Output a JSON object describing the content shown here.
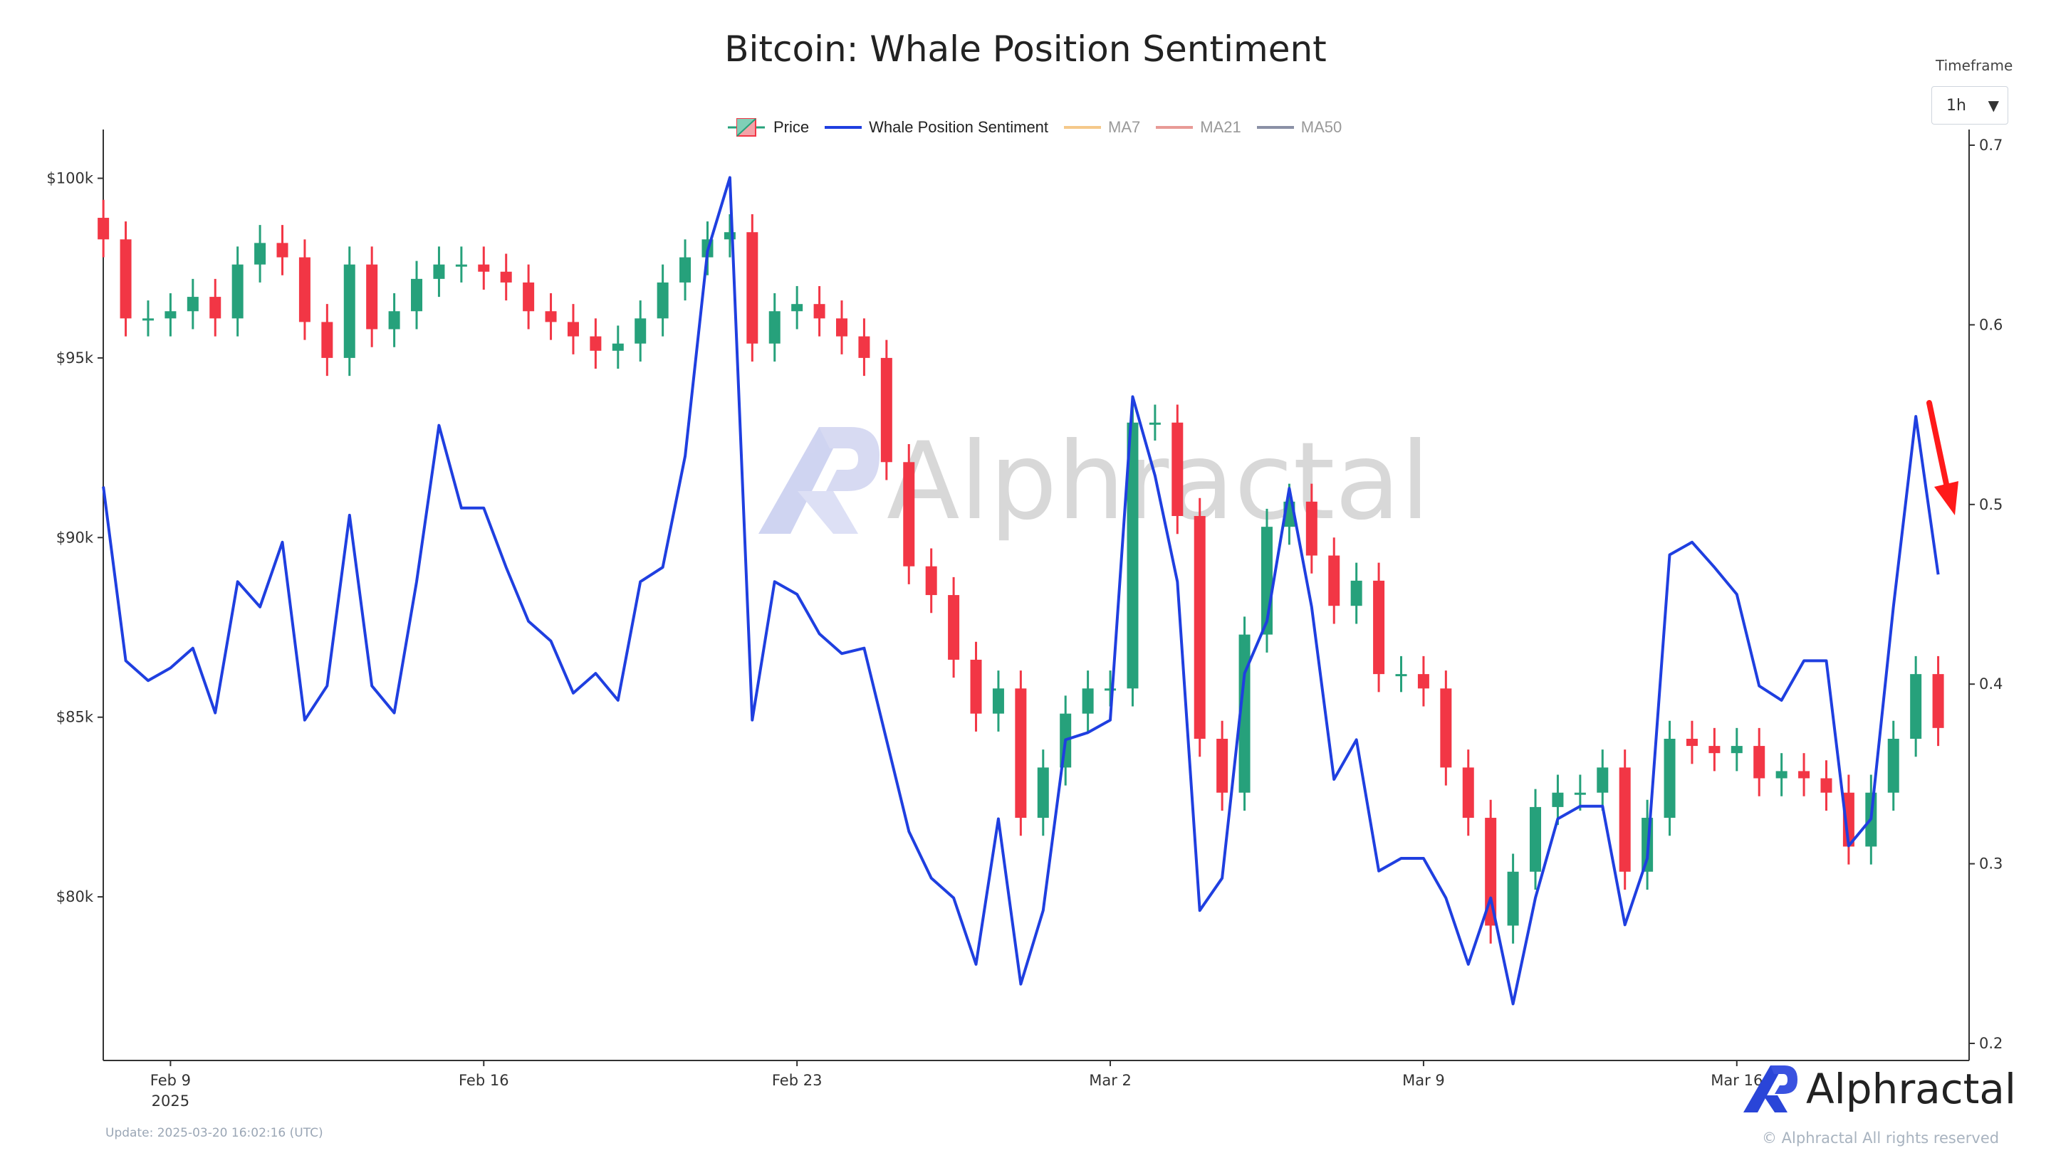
{
  "chart_data": {
    "type": "line",
    "title": "Bitcoin: Whale Position Sentiment",
    "legend": {
      "placement": "top",
      "items": [
        {
          "name": "Price",
          "color": "#26a17b",
          "color_down": "#f23645",
          "kind": "candlestick"
        },
        {
          "name": "Whale Position Sentiment",
          "color": "#1f3fe0",
          "kind": "line"
        },
        {
          "name": "MA7",
          "color": "#f5c98a",
          "kind": "line",
          "hidden": true
        },
        {
          "name": "MA21",
          "color": "#e89a96",
          "kind": "line",
          "hidden": true
        },
        {
          "name": "MA50",
          "color": "#8a90a6",
          "kind": "line",
          "hidden": true
        }
      ]
    },
    "x": [
      "2025-02-07 12:00",
      "2025-02-08 00:00",
      "2025-02-08 12:00",
      "2025-02-09 00:00",
      "2025-02-09 12:00",
      "2025-02-10 00:00",
      "2025-02-10 12:00",
      "2025-02-11 00:00",
      "2025-02-11 12:00",
      "2025-02-12 00:00",
      "2025-02-12 12:00",
      "2025-02-13 00:00",
      "2025-02-13 12:00",
      "2025-02-14 00:00",
      "2025-02-14 12:00",
      "2025-02-15 00:00",
      "2025-02-15 12:00",
      "2025-02-16 00:00",
      "2025-02-16 12:00",
      "2025-02-17 00:00",
      "2025-02-17 12:00",
      "2025-02-18 00:00",
      "2025-02-18 12:00",
      "2025-02-19 00:00",
      "2025-02-19 12:00",
      "2025-02-20 00:00",
      "2025-02-20 12:00",
      "2025-02-21 00:00",
      "2025-02-21 12:00",
      "2025-02-22 00:00",
      "2025-02-22 12:00",
      "2025-02-23 00:00",
      "2025-02-23 12:00",
      "2025-02-24 00:00",
      "2025-02-24 12:00",
      "2025-02-25 00:00",
      "2025-02-25 12:00",
      "2025-02-26 00:00",
      "2025-02-26 12:00",
      "2025-02-27 00:00",
      "2025-02-27 12:00",
      "2025-02-28 00:00",
      "2025-02-28 12:00",
      "2025-03-01 00:00",
      "2025-03-01 12:00",
      "2025-03-02 00:00",
      "2025-03-02 12:00",
      "2025-03-03 00:00",
      "2025-03-03 12:00",
      "2025-03-04 00:00",
      "2025-03-04 12:00",
      "2025-03-05 00:00",
      "2025-03-05 12:00",
      "2025-03-06 00:00",
      "2025-03-06 12:00",
      "2025-03-07 00:00",
      "2025-03-07 12:00",
      "2025-03-08 00:00",
      "2025-03-08 12:00",
      "2025-03-09 00:00",
      "2025-03-09 12:00",
      "2025-03-10 00:00",
      "2025-03-10 12:00",
      "2025-03-11 00:00",
      "2025-03-11 12:00",
      "2025-03-12 00:00",
      "2025-03-12 12:00",
      "2025-03-13 00:00",
      "2025-03-13 12:00",
      "2025-03-14 00:00",
      "2025-03-14 12:00",
      "2025-03-15 00:00",
      "2025-03-15 12:00",
      "2025-03-16 00:00",
      "2025-03-16 12:00",
      "2025-03-17 00:00",
      "2025-03-17 12:00",
      "2025-03-18 00:00",
      "2025-03-18 12:00",
      "2025-03-19 00:00",
      "2025-03-19 12:00",
      "2025-03-20 00:00",
      "2025-03-20 12:00"
    ],
    "series": [
      {
        "name": "Price",
        "axis": "left",
        "values": [
          98300,
          96100,
          96100,
          96300,
          96700,
          96100,
          97600,
          98200,
          97800,
          96000,
          95000,
          97600,
          95800,
          96300,
          97200,
          97600,
          97600,
          97400,
          97100,
          96300,
          96000,
          95600,
          95200,
          95400,
          96100,
          97100,
          97800,
          98300,
          98500,
          95400,
          96300,
          96500,
          96100,
          95600,
          95000,
          92100,
          89200,
          88400,
          86600,
          85100,
          85800,
          82200,
          83600,
          85100,
          85800,
          85800,
          93200,
          93200,
          90600,
          84400,
          82900,
          87300,
          90300,
          91000,
          89500,
          88100,
          88800,
          86200,
          86200,
          85800,
          83600,
          82200,
          79200,
          80700,
          82500,
          82900,
          82900,
          83600,
          80700,
          82200,
          84400,
          84200,
          84000,
          84200,
          83300,
          83500,
          83300,
          82900,
          81400,
          82900,
          84400,
          86200,
          84700
        ]
      },
      {
        "name": "Whale Position Sentiment",
        "axis": "right",
        "values": [
          0.51,
          0.413,
          0.402,
          0.409,
          0.42,
          0.384,
          0.457,
          0.443,
          0.479,
          0.38,
          0.399,
          0.494,
          0.399,
          0.384,
          0.457,
          0.544,
          0.498,
          0.498,
          0.465,
          0.435,
          0.424,
          0.395,
          0.406,
          0.391,
          0.457,
          0.465,
          0.527,
          0.641,
          0.682,
          0.38,
          0.457,
          0.45,
          0.428,
          0.417,
          0.42,
          0.369,
          0.318,
          0.292,
          0.281,
          0.244,
          0.325,
          0.233,
          0.274,
          0.369,
          0.373,
          0.38,
          0.56,
          0.516,
          0.457,
          0.274,
          0.292,
          0.406,
          0.435,
          0.509,
          0.443,
          0.347,
          0.369,
          0.296,
          0.303,
          0.303,
          0.281,
          0.244,
          0.281,
          0.222,
          0.281,
          0.325,
          0.332,
          0.332,
          0.266,
          0.303,
          0.472,
          0.479,
          0.465,
          0.45,
          0.399,
          0.391,
          0.413,
          0.413,
          0.31,
          0.325,
          0.443,
          0.549,
          0.461
        ]
      }
    ],
    "left_axis": {
      "ticks": [
        100000,
        95000,
        90000,
        85000,
        80000
      ],
      "tick_labels": [
        "$100k",
        "$95k",
        "$90k",
        "$85k",
        "$80k"
      ]
    },
    "right_axis": {
      "ticks": [
        0.7,
        0.6,
        0.5,
        0.4,
        0.3,
        0.2
      ],
      "tick_labels": [
        "0.7",
        "0.6",
        "0.5",
        "0.4",
        "0.3",
        "0.2"
      ]
    },
    "x_axis": {
      "ticks": [
        "2025-02-09",
        "2025-02-16",
        "2025-02-23",
        "2025-03-02",
        "2025-03-09",
        "2025-03-16"
      ],
      "tick_labels": [
        "Feb 9",
        "Feb 16",
        "Feb 23",
        "Mar 2",
        "Mar 9",
        "Mar 16"
      ],
      "year_label": "2025"
    },
    "grid": false,
    "annotation": {
      "kind": "red-down-arrow",
      "color": "#ff1a1a"
    }
  },
  "controls": {
    "timeframe_label": "Timeframe",
    "timeframe_value": "1h",
    "dropdown_icon": "triangle-down"
  },
  "footer": {
    "update": "Update: 2025-03-20 16:02:16 (UTC)",
    "brand": "Alphractal",
    "copyright": "© Alphractal All rights reserved"
  },
  "watermark": {
    "text": "Alphractal"
  }
}
